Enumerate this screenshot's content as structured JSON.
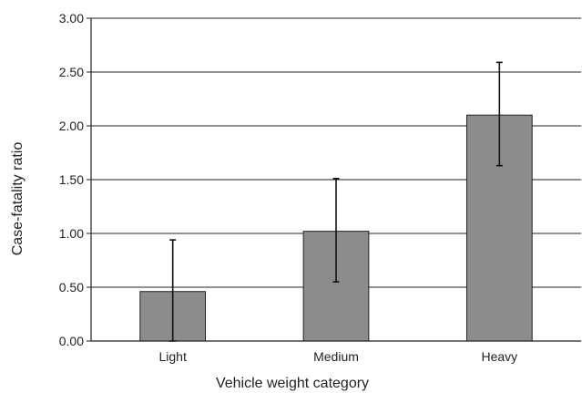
{
  "chart_data": {
    "type": "bar",
    "title": "",
    "xlabel": "Vehicle weight category",
    "ylabel": "Case-fatality ratio",
    "categories": [
      "Light",
      "Medium",
      "Heavy"
    ],
    "values": [
      0.46,
      1.02,
      2.1
    ],
    "error_low": [
      0.0,
      0.55,
      1.63
    ],
    "error_high": [
      0.94,
      1.51,
      2.59
    ],
    "ylim": [
      0.0,
      3.0
    ],
    "yticks": [
      "0.00",
      "0.50",
      "1.00",
      "1.50",
      "2.00",
      "2.50",
      "3.00"
    ],
    "grid": true,
    "legend": "none",
    "colors": {
      "bar_fill": "#8c8c8c",
      "bar_stroke": "#222222",
      "grid": "#222222",
      "error_bar": "#111111"
    }
  }
}
